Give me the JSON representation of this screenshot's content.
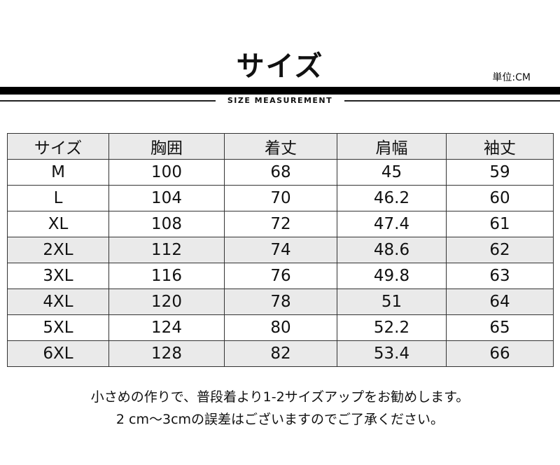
{
  "title": "サイズ",
  "unit": "単位:CM",
  "subtitle": "SIZE MEASUREMENT",
  "table": {
    "headers": [
      "サイズ",
      "胸囲",
      "着丈",
      "肩幅",
      "袖丈"
    ],
    "rows": [
      [
        "M",
        "100",
        "68",
        "45",
        "59"
      ],
      [
        "L",
        "104",
        "70",
        "46.2",
        "60"
      ],
      [
        "XL",
        "108",
        "72",
        "47.4",
        "61"
      ],
      [
        "2XL",
        "112",
        "74",
        "48.6",
        "62"
      ],
      [
        "3XL",
        "116",
        "76",
        "49.8",
        "63"
      ],
      [
        "4XL",
        "120",
        "78",
        "51",
        "64"
      ],
      [
        "5XL",
        "124",
        "80",
        "52.2",
        "65"
      ],
      [
        "6XL",
        "128",
        "82",
        "53.4",
        "66"
      ]
    ]
  },
  "notes": [
    "小さめの作りで、普段着より1-2サイズアップをお勧めします。",
    "2 cm〜3cmの誤差はございますのでご了承ください。"
  ]
}
